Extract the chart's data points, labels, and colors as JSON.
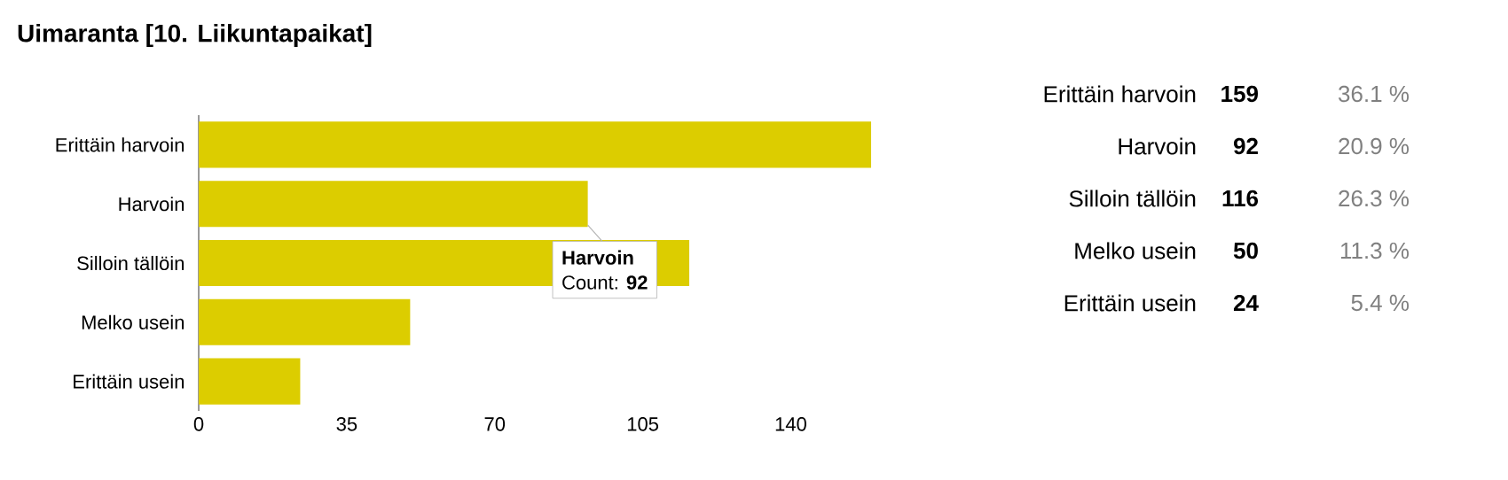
{
  "chart_data": [
    {
      "type": "bar",
      "orientation": "horizontal",
      "title": "Uimaranta [10. Liikuntapaikat]",
      "categories": [
        "Erittäin harvoin",
        "Harvoin",
        "Silloin tällöin",
        "Melko usein",
        "Erittäin usein"
      ],
      "values": [
        159,
        92,
        116,
        50,
        24
      ],
      "color": "#dccd00",
      "xlim": [
        0,
        159
      ],
      "xticks": [
        0,
        35,
        70,
        105,
        140
      ],
      "grid": false,
      "annotations": [
        {
          "text": "**Harvoin**",
          "x": 92,
          "y": "Harvoin"
        },
        "Count: **92**"
      ]
    },
    {
      "type": "other",
      "categories": [
        "Erittäin harvoin",
        "Harvoin",
        "Silloin tällöin",
        "Melko usein",
        "Erittäin usein"
      ],
      "data_labels": true,
      "series": [
        {
          "values": [
            159,
            92,
            116,
            50,
            24
          ]
        },
        {
          "values": [
            36.1,
            20.9,
            26.3,
            11.3,
            5.4
          ],
          "value_labels": [
            "36.1 %",
            "20.9 %",
            "26.3 %",
            "11.3 %",
            "5.4 %"
          ]
        }
      ]
    }
  ]
}
